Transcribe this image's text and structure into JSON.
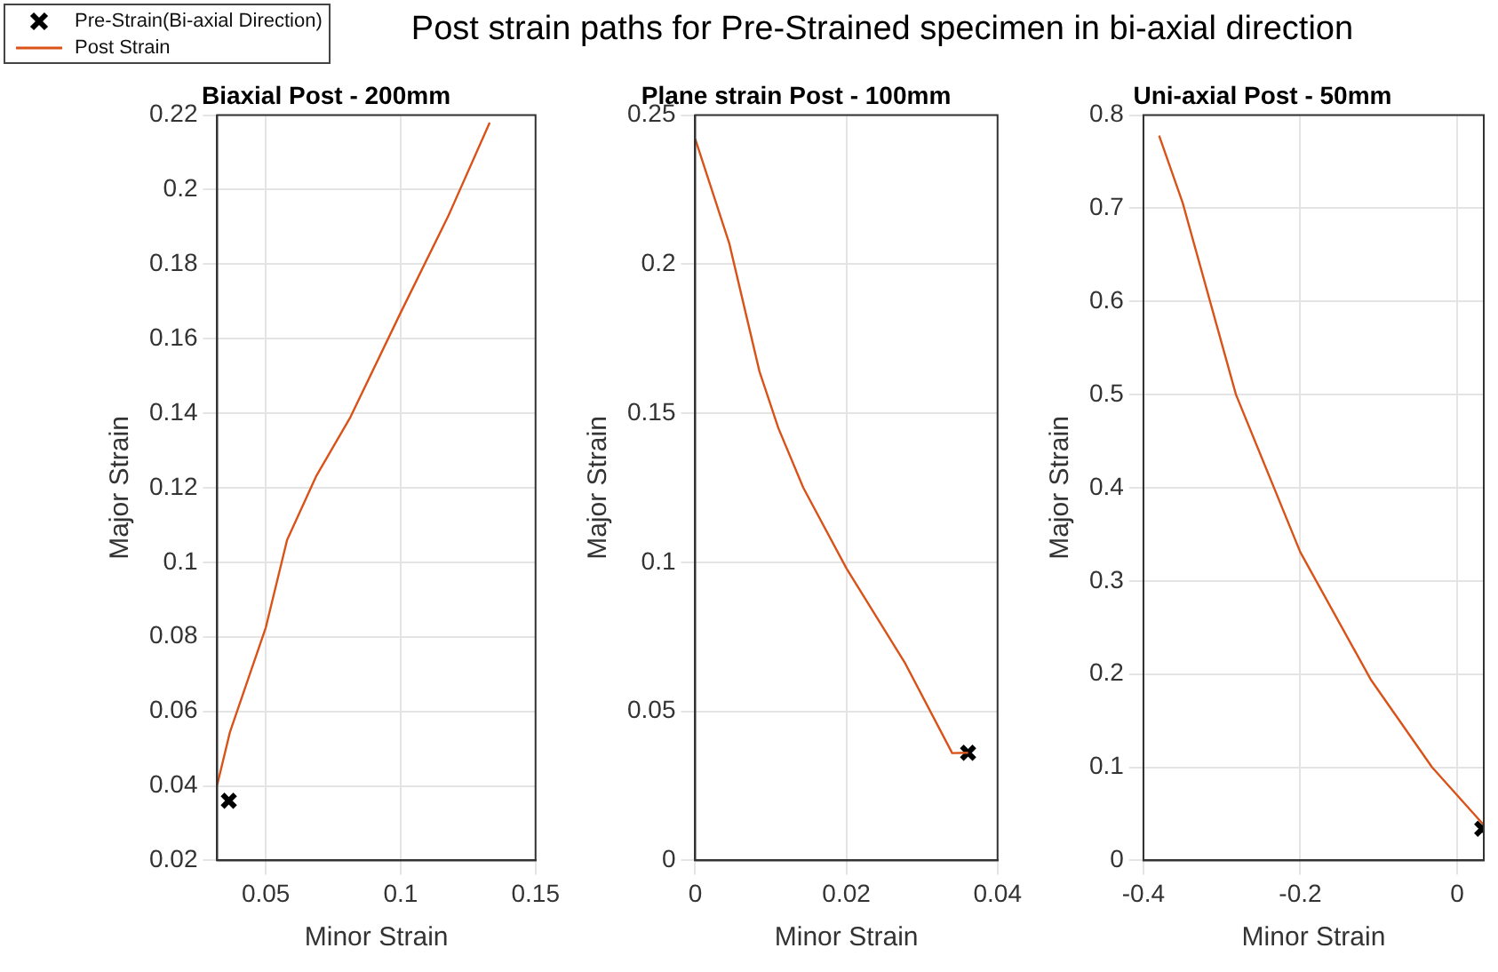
{
  "chart_data": [
    {
      "type": "line",
      "title": "Biaxial Post - 200mm",
      "xlabel": "Minor Strain",
      "ylabel": "Major Strain",
      "annotations": [
        "Post strain paths for Pre-Strained specimen in bi-axial direction"
      ],
      "xlim": [
        0.032,
        0.15
      ],
      "xticks": [
        0.05,
        0.1,
        0.15
      ],
      "ylim": [
        0.02,
        0.22
      ],
      "yticks": [
        0.02,
        0.04,
        0.06,
        0.08,
        0.1,
        0.12,
        0.14,
        0.16,
        0.18,
        0.2,
        0.22
      ],
      "grid": true,
      "legend": "top left",
      "series": [
        {
          "name": "Pre-Strain(Bi-axial Direction)",
          "type": "scatter",
          "marker": "cross",
          "color": "#000000",
          "x": [
            0.0363
          ],
          "values": [
            0.036
          ]
        },
        {
          "name": "Post Strain",
          "type": "line",
          "color": "#d95319",
          "x": [
            0.032,
            0.0367,
            0.05,
            0.0579,
            0.0686,
            0.0814,
            0.1,
            0.1177,
            0.133
          ],
          "values": [
            0.0403,
            0.0544,
            0.0825,
            0.106,
            0.123,
            0.139,
            0.167,
            0.193,
            0.218
          ]
        }
      ]
    },
    {
      "type": "line",
      "title": "Plane strain Post - 100mm",
      "xlabel": "Minor Strain",
      "ylabel": "Major Strain",
      "xlim": [
        0,
        0.04
      ],
      "xticks": [
        0,
        0.02,
        0.04
      ],
      "ylim": [
        0,
        0.25
      ],
      "yticks": [
        0,
        0.05,
        0.1,
        0.15,
        0.2,
        0.25
      ],
      "grid": true,
      "series": [
        {
          "type": "scatter",
          "marker": "cross",
          "color": "#000000",
          "x": [
            0.0361
          ],
          "values": [
            0.0361
          ]
        },
        {
          "type": "line",
          "color": "#d95319",
          "x": [
            0,
            0.0045,
            0.0085,
            0.011,
            0.0143,
            0.02,
            0.0278,
            0.034,
            0.0361
          ],
          "values": [
            0.242,
            0.207,
            0.164,
            0.145,
            0.125,
            0.098,
            0.066,
            0.036,
            0.0361
          ]
        }
      ]
    },
    {
      "type": "line",
      "title": "Uni-axial Post - 50mm",
      "xlabel": "Minor Strain",
      "ylabel": "Major Strain",
      "xlim": [
        -0.4,
        0.034
      ],
      "xticks": [
        -0.4,
        -0.2,
        0
      ],
      "ylim": [
        0,
        0.8
      ],
      "yticks": [
        0,
        0.1,
        0.2,
        0.3,
        0.4,
        0.5,
        0.6,
        0.7,
        0.8
      ],
      "grid": true,
      "series": [
        {
          "type": "scatter",
          "marker": "cross",
          "color": "#000000",
          "x": [
            0.032
          ],
          "values": [
            0.034
          ]
        },
        {
          "type": "line",
          "color": "#d95319",
          "x": [
            -0.38,
            -0.35,
            -0.282,
            -0.2,
            -0.11,
            -0.032,
            0.034
          ],
          "values": [
            0.778,
            0.706,
            0.5,
            0.331,
            0.194,
            0.1,
            0.038
          ]
        }
      ]
    }
  ]
}
